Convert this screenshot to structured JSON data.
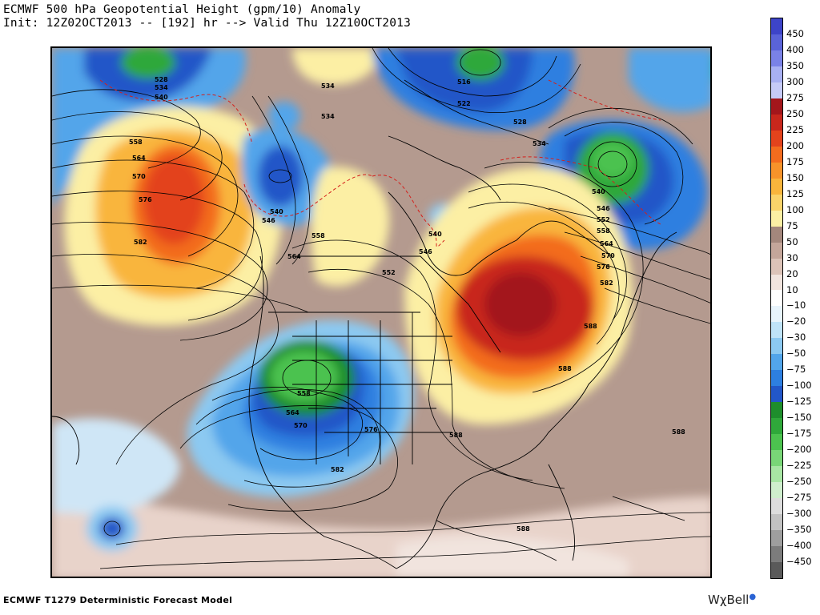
{
  "header": {
    "line1": "ECMWF 500 hPa Geopotential Height (gpm/10) Anomaly",
    "line2": "Init: 12Z02OCT2013 -- [192] hr --> Valid Thu 12Z10OCT2013"
  },
  "footer": {
    "model": "ECMWF T1279 Deterministic Forecast Model",
    "brand": "WχBell"
  },
  "colorbar": {
    "labels": [
      "450",
      "400",
      "350",
      "300",
      "275",
      "250",
      "225",
      "200",
      "175",
      "150",
      "125",
      "100",
      "75",
      "50",
      "30",
      "20",
      "10",
      "−10",
      "−20",
      "−30",
      "−50",
      "−75",
      "−100",
      "−125",
      "−150",
      "−175",
      "−200",
      "−225",
      "−250",
      "−275",
      "−300",
      "−350",
      "−400",
      "−450"
    ],
    "colors": [
      "#3d44c8",
      "#5a63d8",
      "#7a82e6",
      "#a8b0f2",
      "#c6cbf7",
      "#a3161b",
      "#c8271c",
      "#e3431c",
      "#f36c1e",
      "#f7932a",
      "#f9b53c",
      "#fad36a",
      "#fcefa4",
      "#a4877c",
      "#c4a69a",
      "#dcc3b8",
      "#f1e4de",
      "#ffffff",
      "#e8f4fc",
      "#bfe3f8",
      "#8cc9f1",
      "#52a5ea",
      "#2d7fe0",
      "#2257c8",
      "#1e8e2c",
      "#2fa83a",
      "#4cc24f",
      "#79d677",
      "#a8e6a4",
      "#cfeecd",
      "#dddddd",
      "#c2c2c2",
      "#9e9e9e",
      "#7c7c7c",
      "#5a5a5a"
    ]
  },
  "map": {
    "contour_labels": [
      "528",
      "534",
      "540",
      "534",
      "516",
      "522",
      "528",
      "534",
      "558",
      "564",
      "570",
      "576",
      "582",
      "534",
      "540",
      "546",
      "558",
      "564",
      "552",
      "546",
      "540",
      "540",
      "546",
      "552",
      "558",
      "564",
      "570",
      "576",
      "582",
      "588",
      "588",
      "558",
      "564",
      "570",
      "576",
      "582",
      "588",
      "588",
      "588"
    ]
  }
}
